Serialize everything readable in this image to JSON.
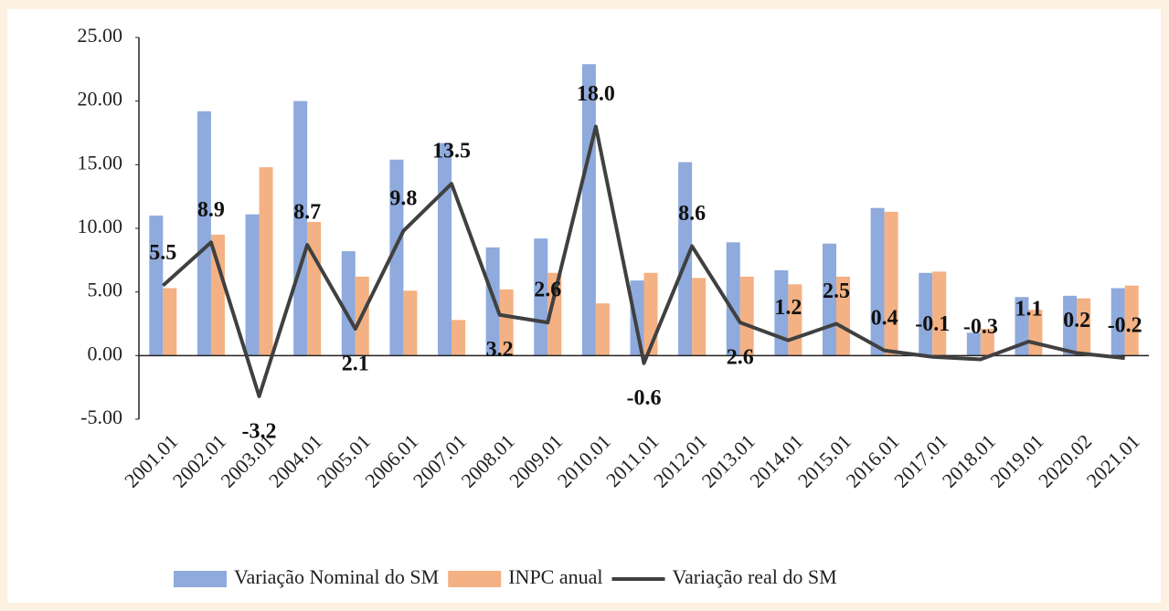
{
  "chart_data": {
    "type": "bar-line",
    "categories": [
      "2001.01",
      "2002.01",
      "2003.01",
      "2004.01",
      "2005.01",
      "2006.01",
      "2007.01",
      "2008.01",
      "2009.01",
      "2010.01",
      "2011.01",
      "2012.01",
      "2013.01",
      "2014.01",
      "2015.01",
      "2016.01",
      "2017.01",
      "2018.01",
      "2019.01",
      "2020.02",
      "2021.01"
    ],
    "series": [
      {
        "name": "Variação Nominal do SM",
        "type": "bar",
        "color": "#8faadc",
        "values": [
          11.0,
          19.2,
          11.1,
          20.0,
          8.2,
          15.4,
          16.7,
          8.5,
          9.2,
          22.9,
          5.9,
          15.2,
          8.9,
          6.7,
          8.8,
          11.6,
          6.5,
          1.8,
          4.6,
          4.7,
          5.3
        ]
      },
      {
        "name": "INPC anual",
        "type": "bar",
        "color": "#f4b183",
        "values": [
          5.3,
          9.5,
          14.8,
          10.5,
          6.2,
          5.1,
          2.8,
          5.2,
          6.5,
          4.1,
          6.5,
          6.1,
          6.2,
          5.6,
          6.2,
          11.3,
          6.6,
          2.1,
          3.6,
          4.5,
          5.5
        ]
      },
      {
        "name": "Variação real do SM",
        "type": "line",
        "color": "#404040",
        "values": [
          5.5,
          8.9,
          -3.2,
          8.7,
          2.1,
          9.8,
          13.5,
          3.2,
          2.6,
          18.0,
          -0.6,
          8.6,
          2.6,
          1.2,
          2.5,
          0.4,
          -0.1,
          -0.3,
          1.1,
          0.2,
          -0.2
        ],
        "value_labels": [
          "5.5",
          "8.9",
          "-3.2",
          "8.7",
          "2.1",
          "9.8",
          "13.5",
          "3.2",
          "2.6",
          "18.0",
          "-0.6",
          "8.6",
          "2.6",
          "1.2",
          "2.5",
          "0.4",
          "-0.1",
          "-0.3",
          "1.1",
          "0.2",
          "-0.2"
        ]
      }
    ],
    "ylim": [
      -5,
      25
    ],
    "yticks": [
      {
        "value": -5,
        "label": "-5.00"
      },
      {
        "value": 0,
        "label": "0.00"
      },
      {
        "value": 5,
        "label": "5.00"
      },
      {
        "value": 10,
        "label": "10.00"
      },
      {
        "value": 15,
        "label": "15.00"
      },
      {
        "value": 20,
        "label": "20.00"
      },
      {
        "value": 25,
        "label": "25.00"
      }
    ],
    "legend": "bottom"
  }
}
